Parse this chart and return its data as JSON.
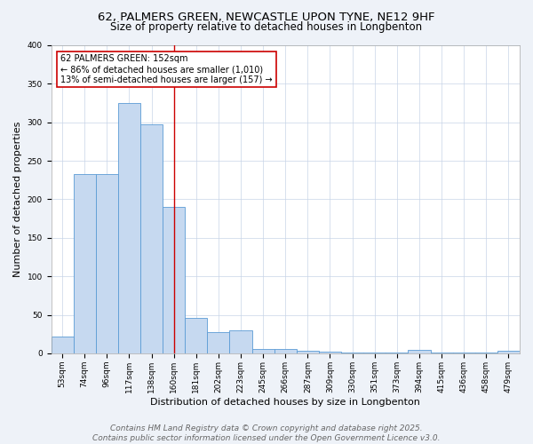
{
  "title_line1": "62, PALMERS GREEN, NEWCASTLE UPON TYNE, NE12 9HF",
  "title_line2": "Size of property relative to detached houses in Longbenton",
  "categories": [
    "53sqm",
    "74sqm",
    "96sqm",
    "117sqm",
    "138sqm",
    "160sqm",
    "181sqm",
    "202sqm",
    "223sqm",
    "245sqm",
    "266sqm",
    "287sqm",
    "309sqm",
    "330sqm",
    "351sqm",
    "373sqm",
    "394sqm",
    "415sqm",
    "436sqm",
    "458sqm",
    "479sqm"
  ],
  "values": [
    22,
    233,
    233,
    325,
    297,
    190,
    46,
    28,
    30,
    6,
    6,
    3,
    2,
    1,
    1,
    1,
    4,
    1,
    1,
    1,
    3
  ],
  "bar_color": "#c6d9f0",
  "bar_edge_color": "#5b9bd5",
  "bar_linewidth": 0.6,
  "vline_x_index": 5,
  "vline_color": "#cc0000",
  "vline_linewidth": 1.0,
  "ylabel": "Number of detached properties",
  "xlabel": "Distribution of detached houses by size in Longbenton",
  "annotation_text": "62 PALMERS GREEN: 152sqm\n← 86% of detached houses are smaller (1,010)\n13% of semi-detached houses are larger (157) →",
  "annotation_box_color": "#ffffff",
  "annotation_box_edge_color": "#cc0000",
  "footer_line1": "Contains HM Land Registry data © Crown copyright and database right 2025.",
  "footer_line2": "Contains public sector information licensed under the Open Government Licence v3.0.",
  "bg_color": "#eef2f8",
  "plot_bg_color": "#ffffff",
  "grid_color": "#c8d4e8",
  "ylim": [
    0,
    400
  ],
  "title_fontsize": 9.5,
  "subtitle_fontsize": 8.5,
  "axis_label_fontsize": 8,
  "tick_fontsize": 6.5,
  "annotation_fontsize": 7,
  "footer_fontsize": 6.5
}
